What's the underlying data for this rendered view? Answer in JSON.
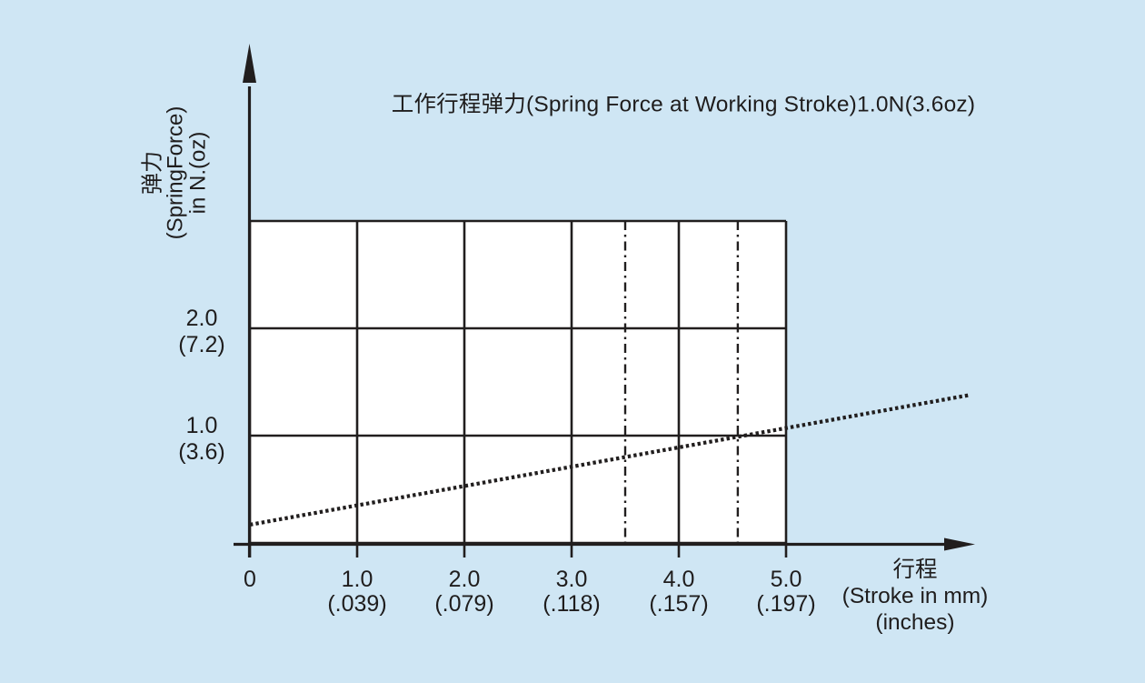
{
  "page": {
    "background_color": "#cfe6f4",
    "line_color": "#211e1e",
    "plot_fill_color": "#ffffff"
  },
  "chart_data": {
    "type": "line",
    "title": "工作行程弹力(Spring Force at Working Stroke)1.0N(3.6oz)",
    "x_axis": {
      "label_lines": [
        "行程",
        "(Stroke in mm)",
        "(inches)"
      ],
      "xlim": [
        0,
        5
      ],
      "ticks": [
        {
          "mm": "0",
          "inches": ""
        },
        {
          "mm": "1.0",
          "inches": "(.039)"
        },
        {
          "mm": "2.0",
          "inches": "(.079)"
        },
        {
          "mm": "3.0",
          "inches": "(.118)"
        },
        {
          "mm": "4.0",
          "inches": "(.157)"
        },
        {
          "mm": "5.0",
          "inches": "(.197)"
        }
      ]
    },
    "y_axis": {
      "label_lines": [
        "弹力",
        "(SpringForce)",
        "in N.(oz)"
      ],
      "ylim": [
        0,
        3
      ],
      "ticks": [
        {
          "value": 2,
          "n": "2.0",
          "oz": "(7.2)"
        },
        {
          "value": 1,
          "n": "1.0",
          "oz": "(3.6)"
        }
      ]
    },
    "grid": {
      "on": true,
      "cols": 5,
      "rows": 3
    },
    "series": [
      {
        "name": "spring-force-line",
        "style": "dotted",
        "points_mm_n": [
          [
            0,
            0.17
          ],
          [
            6.72,
            1.38
          ]
        ]
      }
    ],
    "reference_lines": [
      {
        "axis": "x",
        "value_mm": 3.5,
        "style": "dash-dot"
      },
      {
        "axis": "x",
        "value_mm": 4.55,
        "style": "dash-dot"
      }
    ],
    "legend_position": "none"
  }
}
